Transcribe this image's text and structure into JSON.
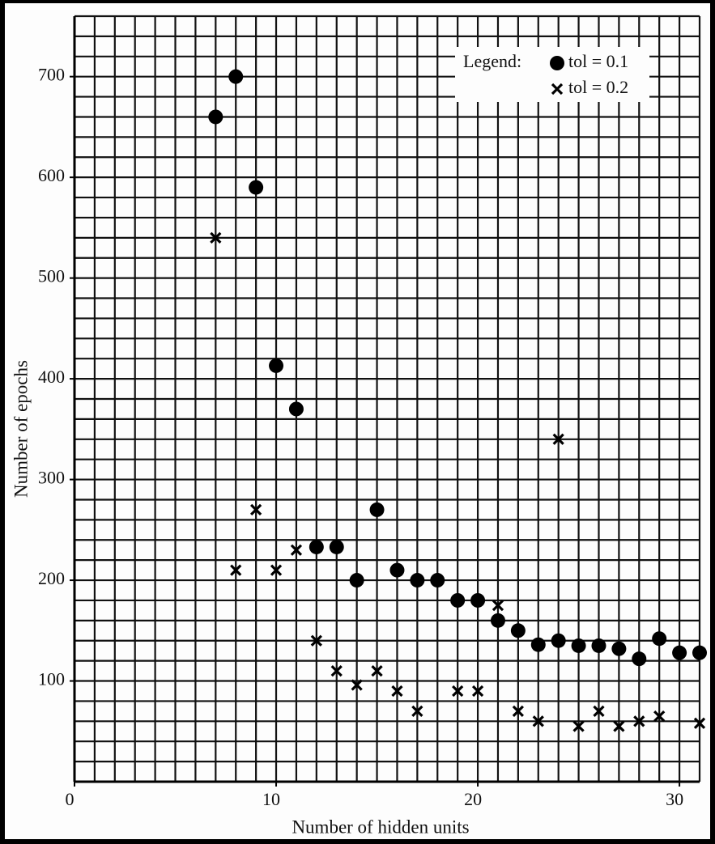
{
  "chart_data": {
    "type": "scatter",
    "x_label": "Number of  hidden units",
    "y_label": "Number of epochs",
    "legend_title": "Legend:",
    "legend_position": "upper right",
    "xlim": [
      0,
      31
    ],
    "ylim": [
      0,
      760
    ],
    "xticks": [
      0,
      10,
      20,
      30
    ],
    "yticks": [
      100,
      200,
      300,
      400,
      500,
      600,
      700
    ],
    "grid": true,
    "xgrid": [
      1,
      2,
      3,
      4,
      5,
      6,
      7,
      8,
      9,
      10,
      11,
      12,
      13,
      14,
      15,
      16,
      17,
      18,
      19,
      20,
      21,
      22,
      23,
      24,
      25,
      26,
      27,
      28,
      29,
      30,
      31
    ],
    "ygrid": [
      20,
      40,
      60,
      80,
      100,
      120,
      140,
      160,
      180,
      200,
      220,
      240,
      260,
      280,
      300,
      320,
      340,
      360,
      380,
      400,
      420,
      440,
      460,
      480,
      500,
      520,
      540,
      560,
      580,
      600,
      620,
      640,
      660,
      680,
      700,
      720,
      740,
      760
    ],
    "series": [
      {
        "name": "tol = 0.1",
        "marker": "circle",
        "color": "#000000",
        "x": [
          7,
          8,
          9,
          10,
          11,
          12,
          13,
          14,
          15,
          16,
          17,
          18,
          19,
          20,
          21,
          22,
          23,
          24,
          25,
          26,
          27,
          28,
          29,
          30,
          31
        ],
        "values": [
          660,
          700,
          590,
          413,
          370,
          233,
          233,
          200,
          270,
          210,
          200,
          200,
          180,
          180,
          160,
          150,
          136,
          140,
          135,
          135,
          132,
          122,
          142,
          128,
          128
        ]
      },
      {
        "name": "tol = 0.2",
        "marker": "x",
        "color": "#000000",
        "x": [
          7,
          8,
          9,
          10,
          11,
          12,
          13,
          14,
          15,
          16,
          17,
          19,
          20,
          21,
          22,
          23,
          24,
          25,
          26,
          27,
          28,
          29,
          31
        ],
        "values": [
          540,
          210,
          270,
          210,
          230,
          140,
          110,
          96,
          110,
          90,
          70,
          90,
          90,
          175,
          70,
          60,
          340,
          55,
          70,
          55,
          60,
          65,
          58
        ]
      }
    ]
  }
}
